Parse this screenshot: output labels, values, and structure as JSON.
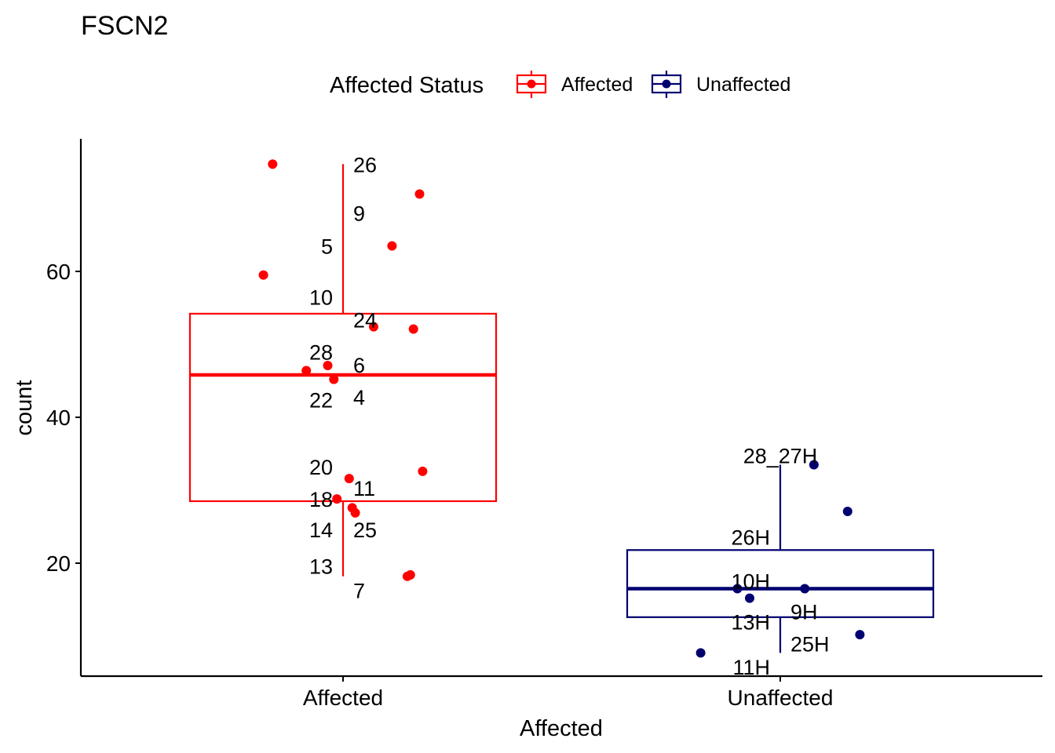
{
  "chart_data": {
    "type": "boxplot",
    "title": "FSCN2",
    "xlabel": "Affected",
    "ylabel": "count",
    "ylim": [
      5,
      78
    ],
    "yticks": [
      20,
      40,
      60
    ],
    "categories": [
      "Affected",
      "Unaffected"
    ],
    "legend": {
      "title": "Affected Status",
      "position": "top",
      "entries": [
        {
          "label": "Affected",
          "color": "#ff0000"
        },
        {
          "label": "Unaffected",
          "color": "#000070"
        }
      ]
    },
    "boxes": [
      {
        "category": "Affected",
        "color": "#ff0000",
        "whisker_low": 18.2,
        "q1": 28.5,
        "median": 45.8,
        "q3": 54.2,
        "whisker_high": 74.7
      },
      {
        "category": "Unaffected",
        "color": "#000070",
        "whisker_low": 7.7,
        "q1": 12.6,
        "median": 16.5,
        "q3": 21.8,
        "whisker_high": 33.5
      }
    ],
    "points": [
      {
        "category": "Affected",
        "jitter": -0.23,
        "y": 74.7
      },
      {
        "category": "Affected",
        "jitter": 0.25,
        "y": 70.6
      },
      {
        "category": "Affected",
        "jitter": 0.16,
        "y": 63.5
      },
      {
        "category": "Affected",
        "jitter": -0.26,
        "y": 59.5
      },
      {
        "category": "Affected",
        "jitter": 0.1,
        "y": 52.4
      },
      {
        "category": "Affected",
        "jitter": 0.23,
        "y": 52.1
      },
      {
        "category": "Affected",
        "jitter": -0.05,
        "y": 47.1
      },
      {
        "category": "Affected",
        "jitter": -0.12,
        "y": 46.4
      },
      {
        "category": "Affected",
        "jitter": -0.03,
        "y": 45.2
      },
      {
        "category": "Affected",
        "jitter": 0.26,
        "y": 32.6
      },
      {
        "category": "Affected",
        "jitter": 0.02,
        "y": 31.6
      },
      {
        "category": "Affected",
        "jitter": -0.02,
        "y": 28.8
      },
      {
        "category": "Affected",
        "jitter": 0.03,
        "y": 27.6
      },
      {
        "category": "Affected",
        "jitter": 0.04,
        "y": 26.9
      },
      {
        "category": "Affected",
        "jitter": 0.22,
        "y": 18.4
      },
      {
        "category": "Affected",
        "jitter": 0.21,
        "y": 18.2
      },
      {
        "category": "Unaffected",
        "jitter": 0.11,
        "y": 33.5
      },
      {
        "category": "Unaffected",
        "jitter": 0.22,
        "y": 27.1
      },
      {
        "category": "Unaffected",
        "jitter": -0.14,
        "y": 16.5
      },
      {
        "category": "Unaffected",
        "jitter": -0.1,
        "y": 15.2
      },
      {
        "category": "Unaffected",
        "jitter": 0.08,
        "y": 16.5
      },
      {
        "category": "Unaffected",
        "jitter": 0.26,
        "y": 10.2
      },
      {
        "category": "Unaffected",
        "jitter": -0.26,
        "y": 7.7
      }
    ],
    "labels": [
      {
        "category": "Affected",
        "text": "26",
        "side": "right",
        "y": 74.7
      },
      {
        "category": "Affected",
        "text": "9",
        "side": "right",
        "y": 68.0
      },
      {
        "category": "Affected",
        "text": "5",
        "side": "left",
        "y": 63.5
      },
      {
        "category": "Affected",
        "text": "10",
        "side": "left",
        "y": 56.5
      },
      {
        "category": "Affected",
        "text": "24",
        "side": "right",
        "y": 53.4
      },
      {
        "category": "Affected",
        "text": "28",
        "side": "left",
        "y": 49.0
      },
      {
        "category": "Affected",
        "text": "6",
        "side": "right",
        "y": 47.2
      },
      {
        "category": "Affected",
        "text": "22",
        "side": "left",
        "y": 42.4
      },
      {
        "category": "Affected",
        "text": "4",
        "side": "right",
        "y": 42.8
      },
      {
        "category": "Affected",
        "text": "20",
        "side": "left",
        "y": 33.2
      },
      {
        "category": "Affected",
        "text": "11",
        "side": "right",
        "y": 30.3
      },
      {
        "category": "Affected",
        "text": "18",
        "side": "left",
        "y": 28.8
      },
      {
        "category": "Affected",
        "text": "14",
        "side": "left",
        "y": 24.6
      },
      {
        "category": "Affected",
        "text": "25",
        "side": "right",
        "y": 24.6
      },
      {
        "category": "Affected",
        "text": "13",
        "side": "left",
        "y": 19.6
      },
      {
        "category": "Affected",
        "text": "7",
        "side": "right",
        "y": 16.3
      },
      {
        "category": "Unaffected",
        "text": "28_27H",
        "side": "center",
        "y": 34.8
      },
      {
        "category": "Unaffected",
        "text": "26H",
        "side": "left",
        "y": 23.6
      },
      {
        "category": "Unaffected",
        "text": "10H",
        "side": "left",
        "y": 17.6
      },
      {
        "category": "Unaffected",
        "text": "9H",
        "side": "right",
        "y": 13.4
      },
      {
        "category": "Unaffected",
        "text": "13H",
        "side": "left",
        "y": 12.0
      },
      {
        "category": "Unaffected",
        "text": "25H",
        "side": "right",
        "y": 9.0
      },
      {
        "category": "Unaffected",
        "text": "11H",
        "side": "left",
        "y": 5.8
      }
    ]
  }
}
